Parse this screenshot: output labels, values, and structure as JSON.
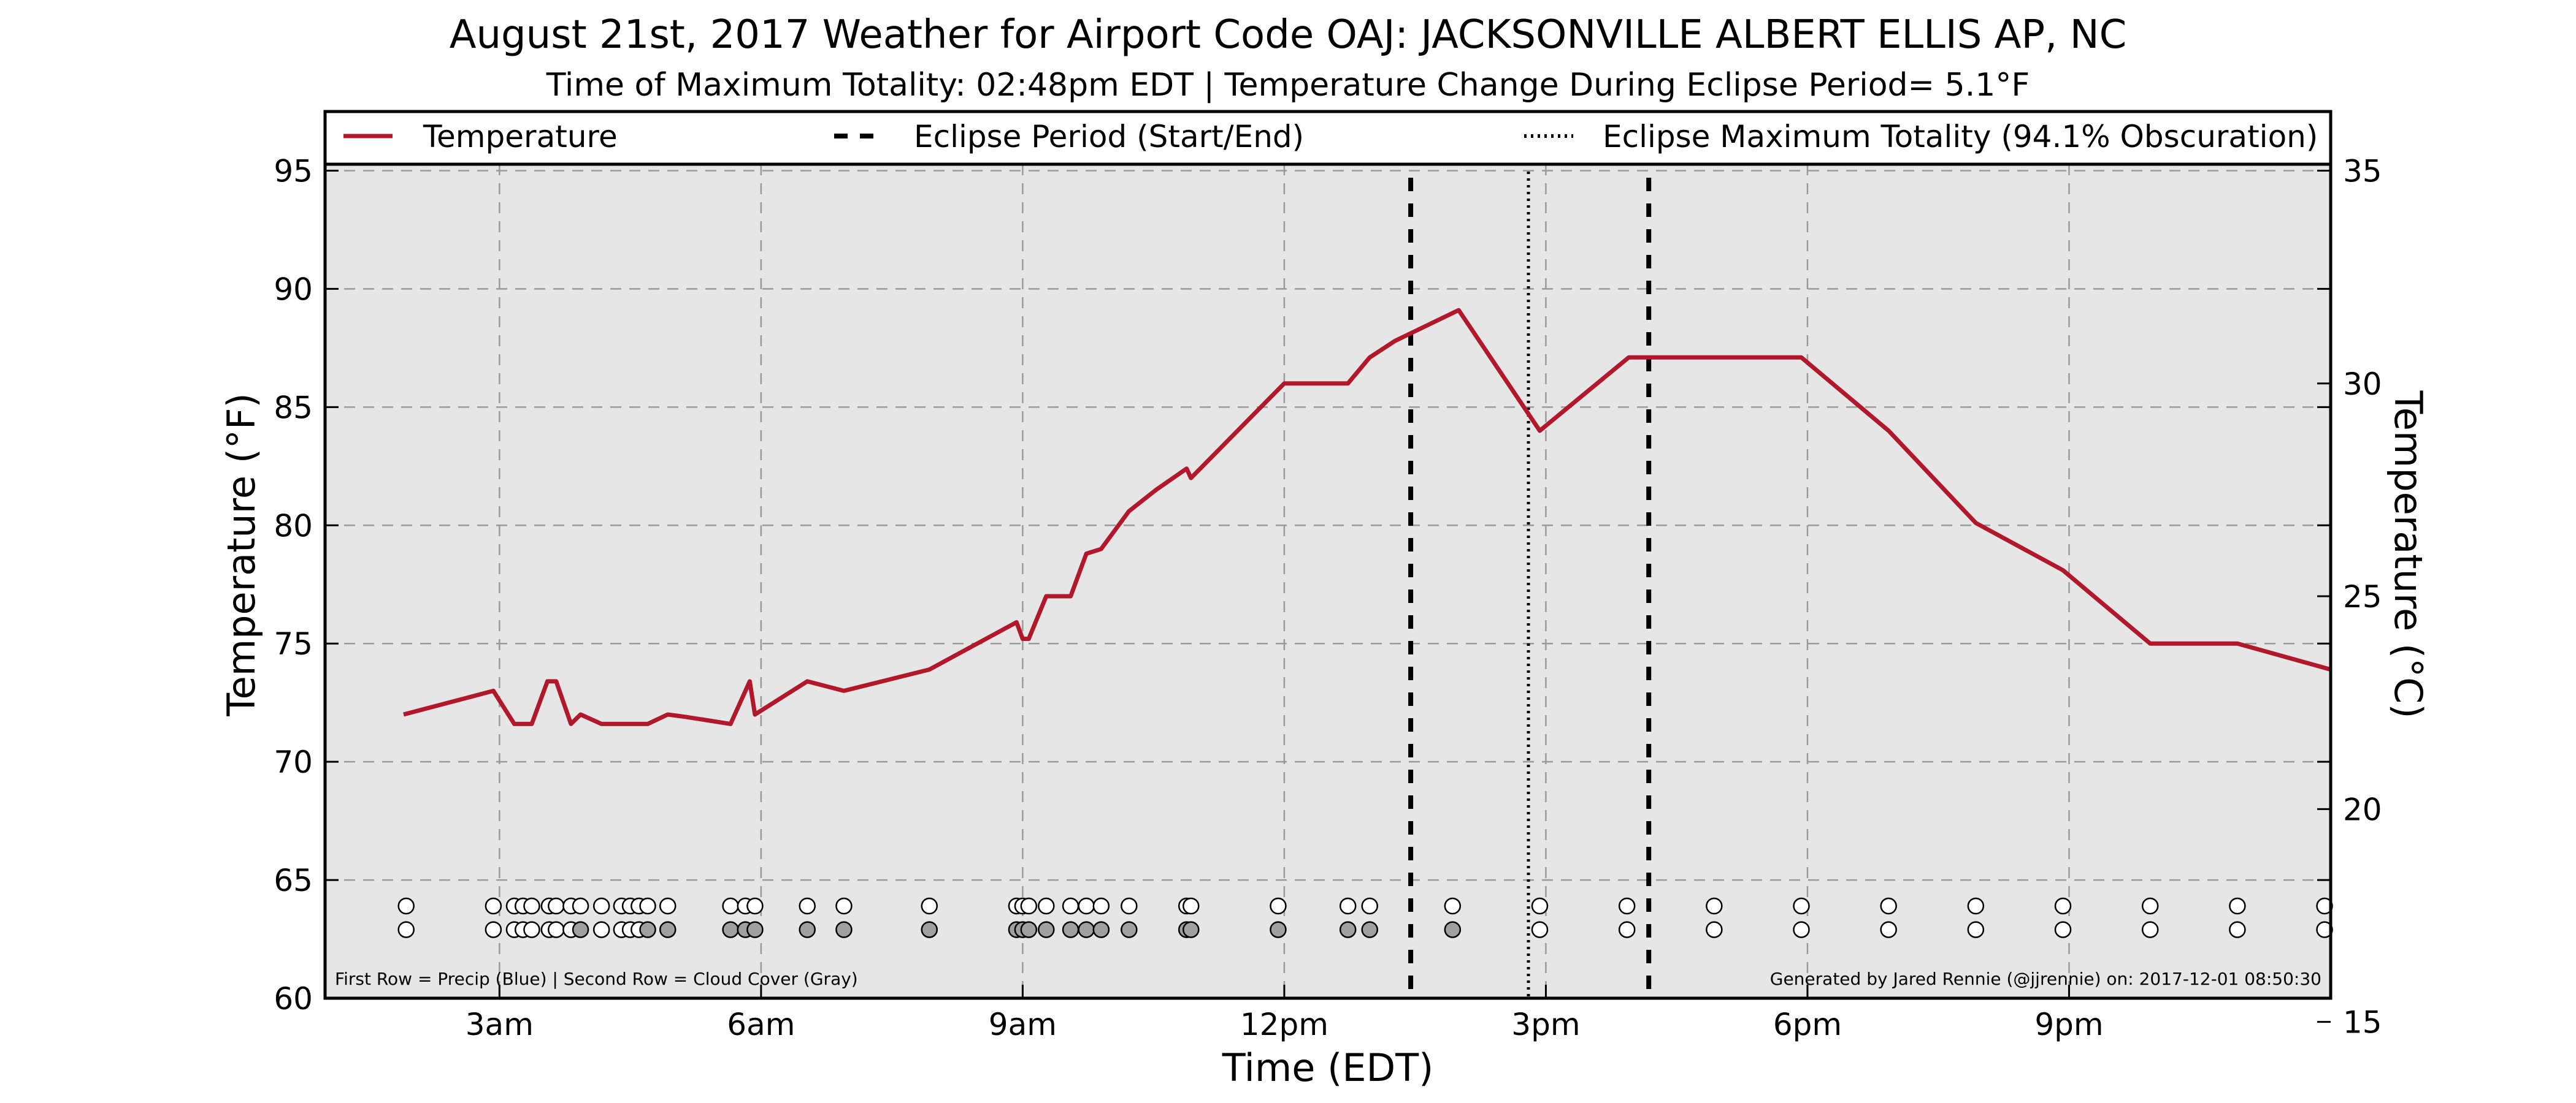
{
  "header": {
    "title": "August 21st, 2017 Weather for Airport Code OAJ: JACKSONVILLE ALBERT ELLIS AP, NC",
    "subtitle": "Time of Maximum Totality: 02:48pm EDT | Temperature Change During Eclipse Period= 5.1°F"
  },
  "legend": {
    "temperature": "Temperature",
    "eclipse_period": "Eclipse Period (Start/End)",
    "max_totality": "Eclipse Maximum Totality (94.1% Obscuration)"
  },
  "notes": {
    "rows": "First Row = Precip (Blue) | Second Row = Cloud Cover (Gray)",
    "credit": "Generated by Jared Rennie (@jjrennie) on: 2017-12-01 08:50:30"
  },
  "chart_data": {
    "type": "line",
    "xlabel": "Time (EDT)",
    "ylabel": "Temperature (°F)",
    "y2label": "Temperature (°C)",
    "xlim": [
      1,
      24
    ],
    "ylim": [
      60,
      97.5
    ],
    "y2lim": [
      15.556,
      36.389
    ],
    "x_ticks": [
      {
        "value": 3,
        "label": "3am"
      },
      {
        "value": 6,
        "label": "6am"
      },
      {
        "value": 9,
        "label": "9am"
      },
      {
        "value": 12,
        "label": "12pm"
      },
      {
        "value": 15,
        "label": "3pm"
      },
      {
        "value": 18,
        "label": "6pm"
      },
      {
        "value": 21,
        "label": "9pm"
      }
    ],
    "y_ticks": [
      60,
      65,
      70,
      75,
      80,
      85,
      90,
      95
    ],
    "y2_ticks": [
      15,
      20,
      25,
      30,
      35
    ],
    "grid": true,
    "legend_position": "top",
    "series": [
      {
        "name": "Temperature",
        "color": "#b2182b",
        "x": [
          1.9,
          2.93,
          3.17,
          3.37,
          3.55,
          3.65,
          3.82,
          3.93,
          4.17,
          4.4,
          4.7,
          4.93,
          5.13,
          5.65,
          5.87,
          5.93,
          6.53,
          6.95,
          7.93,
          8.93,
          9.0,
          9.07,
          9.27,
          9.55,
          9.73,
          9.9,
          10.22,
          10.53,
          10.88,
          10.93,
          12.0,
          12.73,
          12.98,
          13.27,
          14.0,
          14.93,
          15.95,
          16.5,
          16.9,
          17.93,
          18.93,
          19.93,
          20.93,
          21.93,
          22.93,
          24.0
        ],
        "values": [
          72.0,
          73.0,
          71.6,
          71.6,
          73.4,
          73.4,
          71.6,
          72.0,
          71.6,
          71.6,
          71.6,
          72.0,
          71.9,
          71.6,
          73.4,
          72.0,
          73.4,
          73.0,
          73.9,
          75.9,
          75.2,
          75.2,
          77.0,
          77.0,
          78.8,
          79.0,
          80.6,
          81.5,
          82.4,
          82.0,
          86.0,
          86.0,
          87.1,
          87.8,
          89.1,
          84.0,
          87.1,
          87.1,
          87.1,
          87.1,
          84.0,
          80.1,
          78.1,
          75.0,
          75.0,
          73.9
        ]
      }
    ],
    "eclipse_start": 13.45,
    "eclipse_end": 16.18,
    "max_totality": 14.8,
    "markers": {
      "precip_row_value": 63.9,
      "cloud_row_value": 62.9,
      "precip_color": "#ffffff",
      "cloud_clear_color": "#ffffff",
      "cloud_overcast_color": "#a0a0a0",
      "observations": [
        {
          "x": 1.93,
          "cloud": "clear"
        },
        {
          "x": 2.93,
          "cloud": "clear"
        },
        {
          "x": 3.17,
          "cloud": "clear"
        },
        {
          "x": 3.27,
          "cloud": "clear"
        },
        {
          "x": 3.37,
          "cloud": "clear"
        },
        {
          "x": 3.57,
          "cloud": "clear"
        },
        {
          "x": 3.65,
          "cloud": "clear"
        },
        {
          "x": 3.82,
          "cloud": "clear"
        },
        {
          "x": 3.93,
          "cloud": "overcast"
        },
        {
          "x": 4.17,
          "cloud": "clear"
        },
        {
          "x": 4.4,
          "cloud": "clear"
        },
        {
          "x": 4.5,
          "cloud": "clear"
        },
        {
          "x": 4.6,
          "cloud": "clear"
        },
        {
          "x": 4.7,
          "cloud": "overcast"
        },
        {
          "x": 4.93,
          "cloud": "overcast"
        },
        {
          "x": 5.65,
          "cloud": "overcast"
        },
        {
          "x": 5.82,
          "cloud": "overcast"
        },
        {
          "x": 5.93,
          "cloud": "overcast"
        },
        {
          "x": 6.53,
          "cloud": "overcast"
        },
        {
          "x": 6.95,
          "cloud": "overcast"
        },
        {
          "x": 7.93,
          "cloud": "overcast"
        },
        {
          "x": 8.93,
          "cloud": "overcast"
        },
        {
          "x": 9.0,
          "cloud": "overcast"
        },
        {
          "x": 9.07,
          "cloud": "overcast"
        },
        {
          "x": 9.27,
          "cloud": "overcast"
        },
        {
          "x": 9.55,
          "cloud": "overcast"
        },
        {
          "x": 9.73,
          "cloud": "overcast"
        },
        {
          "x": 9.9,
          "cloud": "overcast"
        },
        {
          "x": 10.22,
          "cloud": "overcast"
        },
        {
          "x": 10.88,
          "cloud": "overcast"
        },
        {
          "x": 10.93,
          "cloud": "overcast"
        },
        {
          "x": 11.93,
          "cloud": "overcast"
        },
        {
          "x": 12.73,
          "cloud": "overcast"
        },
        {
          "x": 12.98,
          "cloud": "overcast"
        },
        {
          "x": 13.93,
          "cloud": "overcast"
        },
        {
          "x": 14.93,
          "cloud": "clear"
        },
        {
          "x": 15.93,
          "cloud": "clear"
        },
        {
          "x": 16.93,
          "cloud": "clear"
        },
        {
          "x": 17.93,
          "cloud": "clear"
        },
        {
          "x": 18.93,
          "cloud": "clear"
        },
        {
          "x": 19.93,
          "cloud": "clear"
        },
        {
          "x": 20.93,
          "cloud": "clear"
        },
        {
          "x": 21.93,
          "cloud": "clear"
        },
        {
          "x": 22.93,
          "cloud": "clear"
        },
        {
          "x": 23.93,
          "cloud": "clear"
        }
      ]
    }
  }
}
